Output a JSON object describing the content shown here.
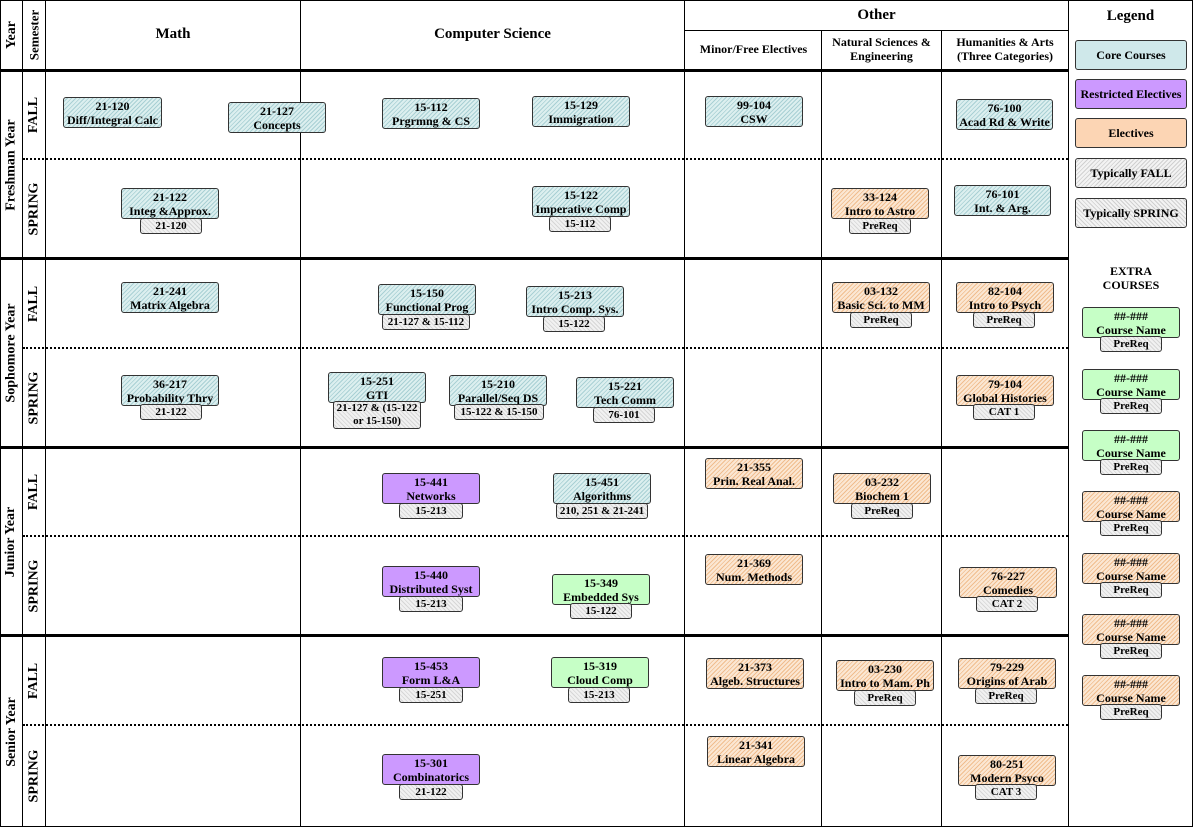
{
  "headers": {
    "year": "Year",
    "semester": "Semester",
    "math": "Math",
    "cs": "Computer Science",
    "other": "Other",
    "minor": "Minor/Free Electives",
    "natsci": "Natural Sciences & Engineering",
    "hum": "Humanities & Arts (Three Categories)",
    "legend": "Legend"
  },
  "years": [
    "Freshman Year",
    "Sophomore Year",
    "Junior Year",
    "Senior Year"
  ],
  "semesters": {
    "fall": "FALL",
    "spring": "SPRING"
  },
  "legend": {
    "core": "Core Courses",
    "restricted": "Restricted Electives",
    "electives": "Electives",
    "fall": "Typically FALL",
    "spring": "Typically SPRING",
    "extra": "EXTRA COURSES",
    "placeholder_num": "##-###",
    "placeholder_name": "Course Name",
    "placeholder_pre": "PreReq",
    "colors": {
      "core": "#cfe8ea",
      "restricted": "#cc99ff",
      "electives": "#fcd5b4",
      "extra_green": "#c6ffc6"
    }
  },
  "courses": {
    "c21120": {
      "num": "21-120",
      "name": "Diff/Integral Calc"
    },
    "c21127": {
      "num": "21-127",
      "name": "Concepts"
    },
    "c15112": {
      "num": "15-112",
      "name": "Prgrmng & CS"
    },
    "c15129": {
      "num": "15-129",
      "name": "Immigration"
    },
    "c99104": {
      "num": "99-104",
      "name": "CSW"
    },
    "c76100": {
      "num": "76-100",
      "name": "Acad Rd & Write"
    },
    "c21122": {
      "num": "21-122",
      "name": "Integ &Approx.",
      "pre": "21-120"
    },
    "c15122": {
      "num": "15-122",
      "name": "Imperative Comp",
      "pre": "15-112"
    },
    "c33124": {
      "num": "33-124",
      "name": "Intro to Astro",
      "pre": "PreReq"
    },
    "c76101": {
      "num": "76-101",
      "name": "Int. & Arg."
    },
    "c21241": {
      "num": "21-241",
      "name": "Matrix Algebra"
    },
    "c15150": {
      "num": "15-150",
      "name": "Functional Prog",
      "pre": "21-127 & 15-112"
    },
    "c15213": {
      "num": "15-213",
      "name": "Intro Comp. Sys.",
      "pre": "15-122"
    },
    "c03132": {
      "num": "03-132",
      "name": "Basic Sci. to MM",
      "pre": "PreReq"
    },
    "c82104": {
      "num": "82-104",
      "name": "Intro to Psych",
      "pre": "PreReq"
    },
    "c36217": {
      "num": "36-217",
      "name": "Probability Thry",
      "pre": "21-122"
    },
    "c15251": {
      "num": "15-251",
      "name": "GTI",
      "pre1": "21-127 & (15-122",
      "pre2": "or 15-150)"
    },
    "c15210": {
      "num": "15-210",
      "name": "Parallel/Seq DS",
      "pre": "15-122 & 15-150"
    },
    "c15221": {
      "num": "15-221",
      "name": "Tech Comm",
      "pre": "76-101"
    },
    "c79104": {
      "num": "79-104",
      "name": "Global Histories",
      "pre": "CAT 1"
    },
    "c15441": {
      "num": "15-441",
      "name": "Networks",
      "pre": "15-213"
    },
    "c15451": {
      "num": "15-451",
      "name": "Algorithms",
      "pre": "210, 251 & 21-241"
    },
    "c21355": {
      "num": "21-355",
      "name": "Prin. Real Anal."
    },
    "c03232": {
      "num": "03-232",
      "name": "Biochem 1",
      "pre": "PreReq"
    },
    "c15440": {
      "num": "15-440",
      "name": "Distributed Syst",
      "pre": "15-213"
    },
    "c15349": {
      "num": "15-349",
      "name": "Embedded Sys",
      "pre": "15-122"
    },
    "c21369": {
      "num": "21-369",
      "name": "Num. Methods"
    },
    "c76227": {
      "num": "76-227",
      "name": "Comedies",
      "pre": "CAT 2"
    },
    "c15453": {
      "num": "15-453",
      "name": "Form L&A",
      "pre": "15-251"
    },
    "c15319": {
      "num": "15-319",
      "name": "Cloud Comp",
      "pre": "15-213"
    },
    "c21373": {
      "num": "21-373",
      "name": "Algeb. Structures"
    },
    "c03230": {
      "num": "03-230",
      "name": "Intro to Mam. Ph",
      "pre": "PreReq"
    },
    "c79229": {
      "num": "79-229",
      "name": "Origins of Arab",
      "pre": "PreReq"
    },
    "c15301": {
      "num": "15-301",
      "name": "Combinatorics",
      "pre": "21-122"
    },
    "c21341": {
      "num": "21-341",
      "name": "Linear Algebra"
    },
    "c80251": {
      "num": "80-251",
      "name": "Modern Psyco",
      "pre": "CAT 3"
    }
  }
}
